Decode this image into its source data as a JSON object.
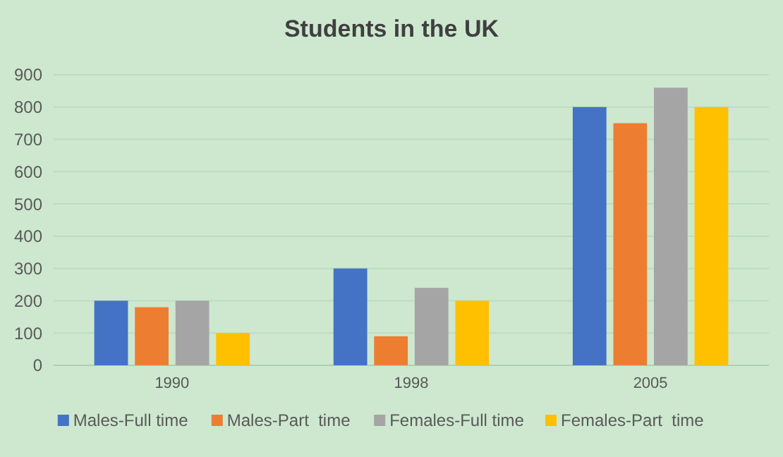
{
  "chart_data": {
    "type": "bar",
    "title": "Students in the UK",
    "categories": [
      "1990",
      "1998",
      "2005"
    ],
    "series": [
      {
        "name": "Males-Full time",
        "color": "#4472c4",
        "values": [
          200,
          300,
          800
        ]
      },
      {
        "name": "Males-Part  time",
        "color": "#ed7d31",
        "values": [
          180,
          90,
          750
        ]
      },
      {
        "name": "Females-Full time",
        "color": "#a5a5a5",
        "values": [
          200,
          240,
          860
        ]
      },
      {
        "name": "Females-Part  time",
        "color": "#ffc000",
        "values": [
          100,
          200,
          800
        ]
      }
    ],
    "ylim": [
      0,
      900
    ],
    "yticks": [
      0,
      100,
      200,
      300,
      400,
      500,
      600,
      700,
      800,
      900
    ],
    "grid": "y",
    "legend": "bottom"
  }
}
